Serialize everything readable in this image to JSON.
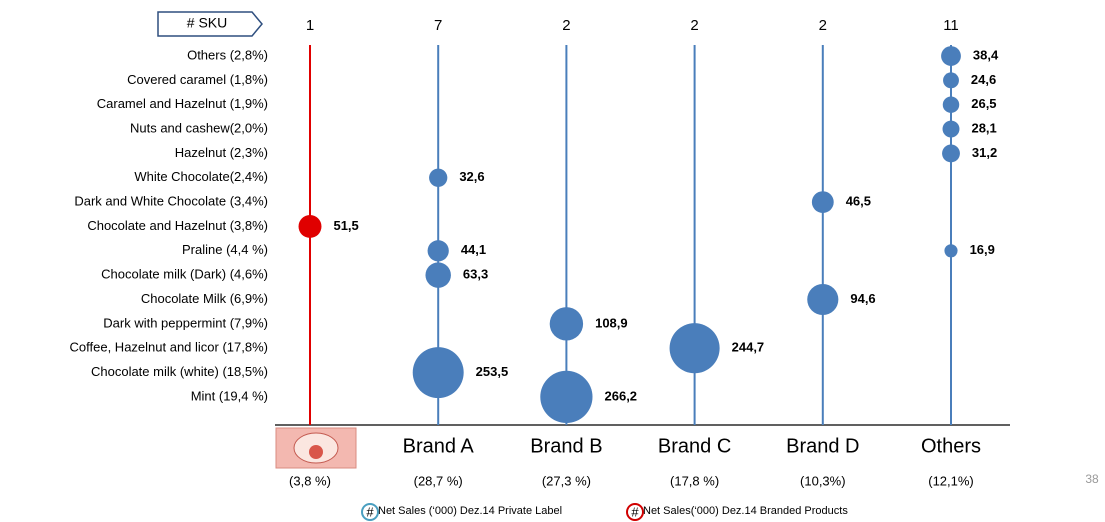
{
  "chart_data": {
    "type": "bubble",
    "sku_header": "# SKU",
    "page_number": "38",
    "categories": [
      "Others (2,8%)",
      "Covered caramel (1,8%)",
      "Caramel and Hazelnut (1,9%)",
      "Nuts and cashew(2,0%)",
      "Hazelnut (2,3%)",
      "White Chocolate(2,4%)",
      "Dark and White Chocolate (3,4%)",
      "Chocolate and Hazelnut (3,8%)",
      "Praline (4,4 %)",
      "Chocolate milk (Dark) (4,6%)",
      "Chocolate Milk (6,9%)",
      "Dark with peppermint (7,9%)",
      "Coffee, Hazelnut  and licor (17,8%)",
      "Chocolate milk (white) (18,5%)",
      "Mint (19,4 %)"
    ],
    "columns": [
      {
        "label": null,
        "sku": 1,
        "share": "(3,8 %)",
        "color": "#e00000",
        "values": [
          null,
          null,
          null,
          null,
          null,
          null,
          null,
          51.5,
          null,
          null,
          null,
          null,
          null,
          null,
          null
        ],
        "value_labels": [
          null,
          null,
          null,
          null,
          null,
          null,
          null,
          "51,5",
          null,
          null,
          null,
          null,
          null,
          null,
          null
        ]
      },
      {
        "label": "Brand A",
        "sku": 7,
        "share": "(28,7 %)",
        "color": "#4a7ebb",
        "values": [
          null,
          null,
          null,
          null,
          null,
          32.6,
          null,
          null,
          44.1,
          63.3,
          null,
          null,
          null,
          253.5,
          null
        ],
        "value_labels": [
          null,
          null,
          null,
          null,
          null,
          "32,6",
          null,
          null,
          "44,1",
          "63,3",
          null,
          null,
          null,
          "253,5",
          null
        ]
      },
      {
        "label": "Brand B",
        "sku": 2,
        "share": "(27,3 %)",
        "color": "#4a7ebb",
        "values": [
          null,
          null,
          null,
          null,
          null,
          null,
          null,
          null,
          null,
          null,
          null,
          108.9,
          null,
          null,
          266.2
        ],
        "value_labels": [
          null,
          null,
          null,
          null,
          null,
          null,
          null,
          null,
          null,
          null,
          null,
          "108,9",
          null,
          null,
          "266,2"
        ]
      },
      {
        "label": "Brand C",
        "sku": 2,
        "share": "(17,8 %)",
        "color": "#4a7ebb",
        "values": [
          null,
          null,
          null,
          null,
          null,
          null,
          null,
          null,
          null,
          null,
          null,
          null,
          244.7,
          null,
          null
        ],
        "value_labels": [
          null,
          null,
          null,
          null,
          null,
          null,
          null,
          null,
          null,
          null,
          null,
          null,
          "244,7",
          null,
          null
        ]
      },
      {
        "label": "Brand D",
        "sku": 2,
        "share": "(10,3%)",
        "color": "#4a7ebb",
        "values": [
          null,
          null,
          null,
          null,
          null,
          null,
          46.5,
          null,
          null,
          null,
          94.6,
          null,
          null,
          null,
          null
        ],
        "value_labels": [
          null,
          null,
          null,
          null,
          null,
          null,
          "46,5",
          null,
          null,
          null,
          "94,6",
          null,
          null,
          null,
          null
        ]
      },
      {
        "label": "Others",
        "sku": 11,
        "share": "(12,1%)",
        "color": "#4a7ebb",
        "values": [
          38.4,
          24.6,
          26.5,
          28.1,
          31.2,
          null,
          null,
          null,
          16.9,
          null,
          null,
          null,
          null,
          null,
          null
        ],
        "value_labels": [
          "38,4",
          "24,6",
          "26,5",
          "28,1",
          "31,2",
          null,
          null,
          null,
          "16,9",
          null,
          null,
          null,
          null,
          null,
          null
        ]
      }
    ],
    "legend": [
      {
        "symbol": "#",
        "text": "Net Sales (‘000) Dez.14 Private Label",
        "color": "#4a9fc0"
      },
      {
        "symbol": "#",
        "text": "Net Sales(‘000) Dez.14 Branded Products",
        "color": "#d00000"
      }
    ]
  }
}
